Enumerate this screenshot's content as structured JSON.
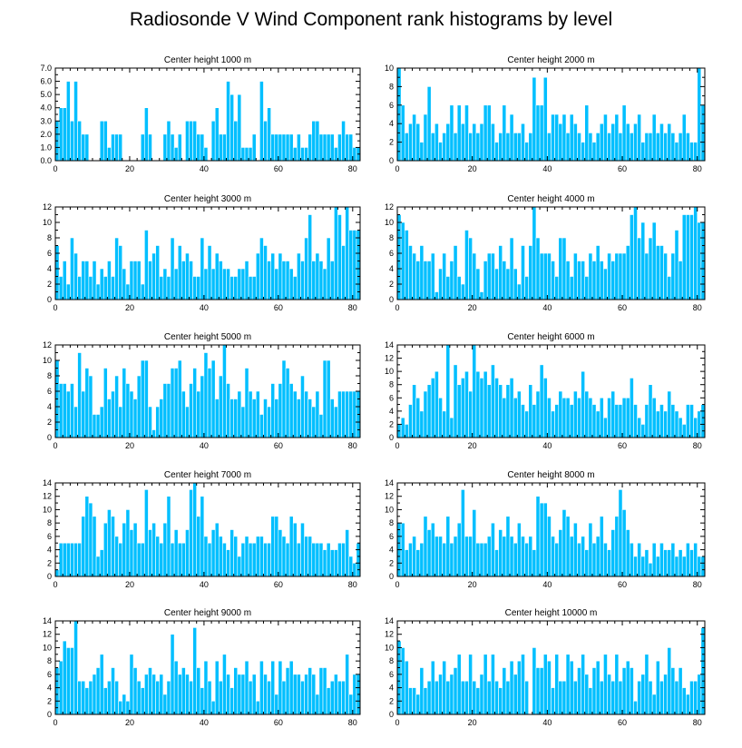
{
  "figure": {
    "title": "Radiosonde V Wind Component rank histograms by level",
    "bar_color": "#00bfff",
    "axis_color": "#000000"
  },
  "chart_data": [
    {
      "type": "bar",
      "title": "Center height 1000 m",
      "xlim": [
        0,
        82
      ],
      "ylim": [
        0,
        7
      ],
      "xticks": [
        0,
        20,
        40,
        60,
        80
      ],
      "yticks": [
        0,
        1,
        2,
        3,
        4,
        5,
        6,
        7
      ],
      "ytick_labels": [
        "0.0",
        "1.0",
        "2.0",
        "3.0",
        "4.0",
        "5.0",
        "6.0",
        "7.0"
      ],
      "values": [
        3,
        4,
        4,
        6,
        3,
        6,
        3,
        2,
        2,
        0,
        0,
        0,
        3,
        3,
        1,
        2,
        2,
        2,
        0,
        0,
        0,
        0,
        0,
        2,
        4,
        2,
        0,
        0,
        0,
        2,
        3,
        2,
        1,
        2,
        0,
        3,
        3,
        3,
        2,
        2,
        1,
        0,
        3,
        4,
        2,
        2,
        6,
        5,
        3,
        5,
        1,
        1,
        1,
        2,
        0,
        6,
        3,
        4,
        2,
        2,
        2,
        2,
        2,
        2,
        1,
        2,
        1,
        1,
        2,
        3,
        3,
        2,
        2,
        2,
        2,
        1,
        2,
        3,
        2,
        2,
        1,
        1
      ]
    },
    {
      "type": "bar",
      "title": "Center height 2000 m",
      "xlim": [
        0,
        82
      ],
      "ylim": [
        0,
        10
      ],
      "xticks": [
        0,
        20,
        40,
        60,
        80
      ],
      "yticks": [
        0,
        2,
        4,
        6,
        8,
        10
      ],
      "ytick_labels": [
        "0",
        "2",
        "4",
        "6",
        "8",
        "10"
      ],
      "values": [
        10,
        6,
        3,
        4,
        5,
        4,
        2,
        5,
        8,
        3,
        4,
        2,
        3,
        4,
        6,
        3,
        6,
        4,
        6,
        3,
        4,
        3,
        4,
        6,
        6,
        4,
        2,
        3,
        6,
        3,
        5,
        3,
        3,
        4,
        2,
        3,
        9,
        6,
        6,
        9,
        3,
        5,
        5,
        4,
        5,
        3,
        5,
        4,
        3,
        2,
        6,
        3,
        2,
        3,
        4,
        5,
        3,
        4,
        5,
        3,
        6,
        4,
        3,
        4,
        5,
        2,
        3,
        3,
        5,
        3,
        4,
        3,
        4,
        3,
        2,
        3,
        5,
        3,
        2,
        2,
        10,
        6
      ]
    },
    {
      "type": "bar",
      "title": "Center height 3000 m",
      "xlim": [
        0,
        82
      ],
      "ylim": [
        0,
        12
      ],
      "xticks": [
        0,
        20,
        40,
        60,
        80
      ],
      "yticks": [
        0,
        2,
        4,
        6,
        8,
        10,
        12
      ],
      "ytick_labels": [
        "0",
        "2",
        "4",
        "6",
        "8",
        "10",
        "12"
      ],
      "values": [
        7,
        3,
        5,
        2,
        8,
        6,
        3,
        5,
        5,
        3,
        5,
        2,
        4,
        3,
        5,
        3,
        8,
        7,
        4,
        2,
        5,
        5,
        5,
        2,
        9,
        5,
        6,
        7,
        3,
        4,
        3,
        8,
        4,
        7,
        5,
        6,
        5,
        3,
        3,
        8,
        4,
        7,
        4,
        6,
        5,
        4,
        4,
        3,
        3,
        4,
        4,
        5,
        3,
        3,
        6,
        8,
        7,
        5,
        6,
        4,
        6,
        5,
        5,
        4,
        3,
        6,
        5,
        8,
        11,
        5,
        6,
        5,
        4,
        8,
        5,
        12,
        11,
        7,
        12,
        9,
        9,
        9
      ]
    },
    {
      "type": "bar",
      "title": "Center height 4000 m",
      "xlim": [
        0,
        82
      ],
      "ylim": [
        0,
        12
      ],
      "xticks": [
        0,
        20,
        40,
        60,
        80
      ],
      "yticks": [
        0,
        2,
        4,
        6,
        8,
        10,
        12
      ],
      "ytick_labels": [
        "0",
        "2",
        "4",
        "6",
        "8",
        "10",
        "12"
      ],
      "values": [
        11,
        10,
        9,
        7,
        6,
        5,
        7,
        5,
        5,
        6,
        1,
        4,
        6,
        3,
        5,
        7,
        3,
        2,
        9,
        8,
        6,
        4,
        1,
        5,
        6,
        6,
        4,
        7,
        5,
        4,
        8,
        4,
        2,
        7,
        3,
        7,
        12,
        8,
        6,
        6,
        6,
        5,
        3,
        8,
        8,
        5,
        3,
        6,
        5,
        5,
        3,
        6,
        5,
        7,
        5,
        4,
        6,
        5,
        6,
        6,
        6,
        7,
        11,
        12,
        8,
        10,
        6,
        8,
        10,
        7,
        7,
        6,
        3,
        6,
        9,
        5,
        11,
        11,
        11,
        12,
        10,
        10
      ]
    },
    {
      "type": "bar",
      "title": "Center height 5000 m",
      "xlim": [
        0,
        82
      ],
      "ylim": [
        0,
        12
      ],
      "xticks": [
        0,
        20,
        40,
        60,
        80
      ],
      "yticks": [
        0,
        2,
        4,
        6,
        8,
        10,
        12
      ],
      "ytick_labels": [
        "0",
        "2",
        "4",
        "6",
        "8",
        "10",
        "12"
      ],
      "values": [
        10,
        7,
        7,
        6,
        7,
        4,
        11,
        6,
        9,
        8,
        3,
        3,
        4,
        9,
        5,
        6,
        8,
        4,
        9,
        7,
        6,
        5,
        8,
        10,
        10,
        4,
        1,
        4,
        5,
        7,
        7,
        9,
        9,
        10,
        6,
        4,
        7,
        9,
        6,
        8,
        11,
        9,
        10,
        5,
        8,
        12,
        7,
        5,
        5,
        6,
        4,
        9,
        6,
        5,
        6,
        3,
        5,
        4,
        7,
        5,
        7,
        10,
        9,
        7,
        6,
        5,
        8,
        6,
        5,
        4,
        6,
        3,
        10,
        10,
        5,
        4,
        6,
        6,
        6,
        6,
        6,
        6
      ]
    },
    {
      "type": "bar",
      "title": "Center height 6000 m",
      "xlim": [
        0,
        82
      ],
      "ylim": [
        0,
        14
      ],
      "xticks": [
        0,
        20,
        40,
        60,
        80
      ],
      "yticks": [
        0,
        2,
        4,
        6,
        8,
        10,
        12,
        14
      ],
      "ytick_labels": [
        "0",
        "2",
        "4",
        "6",
        "8",
        "10",
        "12",
        "14"
      ],
      "values": [
        2,
        3,
        2,
        5,
        8,
        6,
        4,
        7,
        8,
        9,
        10,
        6,
        4,
        14,
        3,
        11,
        8,
        9,
        10,
        7,
        14,
        10,
        9,
        10,
        8,
        11,
        9,
        8,
        6,
        8,
        9,
        6,
        7,
        5,
        4,
        8,
        5,
        7,
        11,
        9,
        6,
        4,
        5,
        7,
        6,
        6,
        5,
        7,
        6,
        10,
        7,
        6,
        5,
        4,
        6,
        3,
        6,
        7,
        5,
        5,
        6,
        6,
        9,
        5,
        3,
        2,
        5,
        8,
        6,
        4,
        5,
        4,
        7,
        5,
        4,
        3,
        2,
        5,
        5,
        3,
        4,
        5
      ]
    },
    {
      "type": "bar",
      "title": "Center height 7000 m",
      "xlim": [
        0,
        82
      ],
      "ylim": [
        0,
        14
      ],
      "xticks": [
        0,
        20,
        40,
        60,
        80
      ],
      "yticks": [
        0,
        2,
        4,
        6,
        8,
        10,
        12,
        14
      ],
      "ytick_labels": [
        "0",
        "2",
        "4",
        "6",
        "8",
        "10",
        "12",
        "14"
      ],
      "values": [
        1,
        5,
        5,
        5,
        5,
        5,
        5,
        9,
        12,
        11,
        9,
        3,
        4,
        8,
        10,
        9,
        6,
        5,
        8,
        10,
        7,
        8,
        5,
        5,
        13,
        7,
        8,
        6,
        5,
        8,
        12,
        5,
        7,
        5,
        5,
        7,
        13,
        14,
        9,
        12,
        6,
        5,
        7,
        8,
        6,
        5,
        4,
        7,
        6,
        3,
        5,
        6,
        5,
        5,
        6,
        6,
        5,
        5,
        9,
        9,
        7,
        6,
        5,
        9,
        8,
        5,
        8,
        6,
        6,
        5,
        5,
        5,
        4,
        5,
        4,
        4,
        5,
        5,
        7,
        3,
        2,
        5
      ]
    },
    {
      "type": "bar",
      "title": "Center height 8000 m",
      "xlim": [
        0,
        82
      ],
      "ylim": [
        0,
        14
      ],
      "xticks": [
        0,
        20,
        40,
        60,
        80
      ],
      "yticks": [
        0,
        2,
        4,
        6,
        8,
        10,
        12,
        14
      ],
      "ytick_labels": [
        "0",
        "2",
        "4",
        "6",
        "8",
        "10",
        "12",
        "14"
      ],
      "values": [
        8,
        8,
        4,
        5,
        6,
        4,
        5,
        9,
        7,
        8,
        6,
        6,
        5,
        9,
        5,
        6,
        8,
        13,
        6,
        6,
        10,
        5,
        5,
        5,
        6,
        8,
        4,
        7,
        6,
        9,
        6,
        5,
        8,
        6,
        5,
        6,
        4,
        12,
        11,
        11,
        9,
        6,
        5,
        7,
        10,
        9,
        6,
        8,
        5,
        6,
        4,
        8,
        5,
        6,
        9,
        5,
        4,
        7,
        9,
        13,
        10,
        7,
        5,
        3,
        5,
        3,
        4,
        2,
        5,
        3,
        5,
        4,
        4,
        5,
        3,
        4,
        3,
        5,
        4,
        5,
        3,
        3
      ]
    },
    {
      "type": "bar",
      "title": "Center height 9000 m",
      "xlim": [
        0,
        82
      ],
      "ylim": [
        0,
        14
      ],
      "xticks": [
        0,
        20,
        40,
        60,
        80
      ],
      "yticks": [
        0,
        2,
        4,
        6,
        8,
        10,
        12,
        14
      ],
      "ytick_labels": [
        "0",
        "2",
        "4",
        "6",
        "8",
        "10",
        "12",
        "14"
      ],
      "values": [
        7,
        8,
        11,
        10,
        10,
        14,
        5,
        5,
        4,
        5,
        6,
        7,
        9,
        4,
        5,
        7,
        5,
        2,
        3,
        2,
        9,
        7,
        5,
        4,
        6,
        7,
        6,
        5,
        6,
        3,
        5,
        12,
        8,
        6,
        7,
        6,
        5,
        13,
        7,
        4,
        8,
        5,
        2,
        8,
        5,
        9,
        6,
        4,
        7,
        6,
        6,
        8,
        5,
        6,
        2,
        8,
        6,
        5,
        8,
        3,
        8,
        5,
        7,
        8,
        6,
        6,
        5,
        6,
        7,
        6,
        3,
        7,
        7,
        4,
        5,
        6,
        5,
        5,
        9,
        3,
        6,
        6
      ]
    },
    {
      "type": "bar",
      "title": "Center height 10000 m",
      "xlim": [
        0,
        82
      ],
      "ylim": [
        0,
        14
      ],
      "xticks": [
        0,
        20,
        40,
        60,
        80
      ],
      "yticks": [
        0,
        2,
        4,
        6,
        8,
        10,
        12,
        14
      ],
      "ytick_labels": [
        "0",
        "2",
        "4",
        "6",
        "8",
        "10",
        "12",
        "14"
      ],
      "values": [
        11,
        10,
        8,
        4,
        4,
        3,
        7,
        4,
        5,
        8,
        5,
        6,
        8,
        5,
        6,
        7,
        9,
        5,
        5,
        9,
        5,
        4,
        6,
        9,
        5,
        9,
        5,
        4,
        7,
        5,
        8,
        6,
        8,
        9,
        5,
        0,
        10,
        7,
        7,
        9,
        8,
        4,
        9,
        5,
        5,
        9,
        8,
        5,
        7,
        9,
        6,
        4,
        7,
        8,
        5,
        9,
        6,
        5,
        9,
        5,
        7,
        8,
        7,
        2,
        5,
        6,
        9,
        5,
        3,
        8,
        5,
        6,
        10,
        7,
        5,
        7,
        4,
        3,
        5,
        5,
        6,
        13
      ]
    }
  ]
}
